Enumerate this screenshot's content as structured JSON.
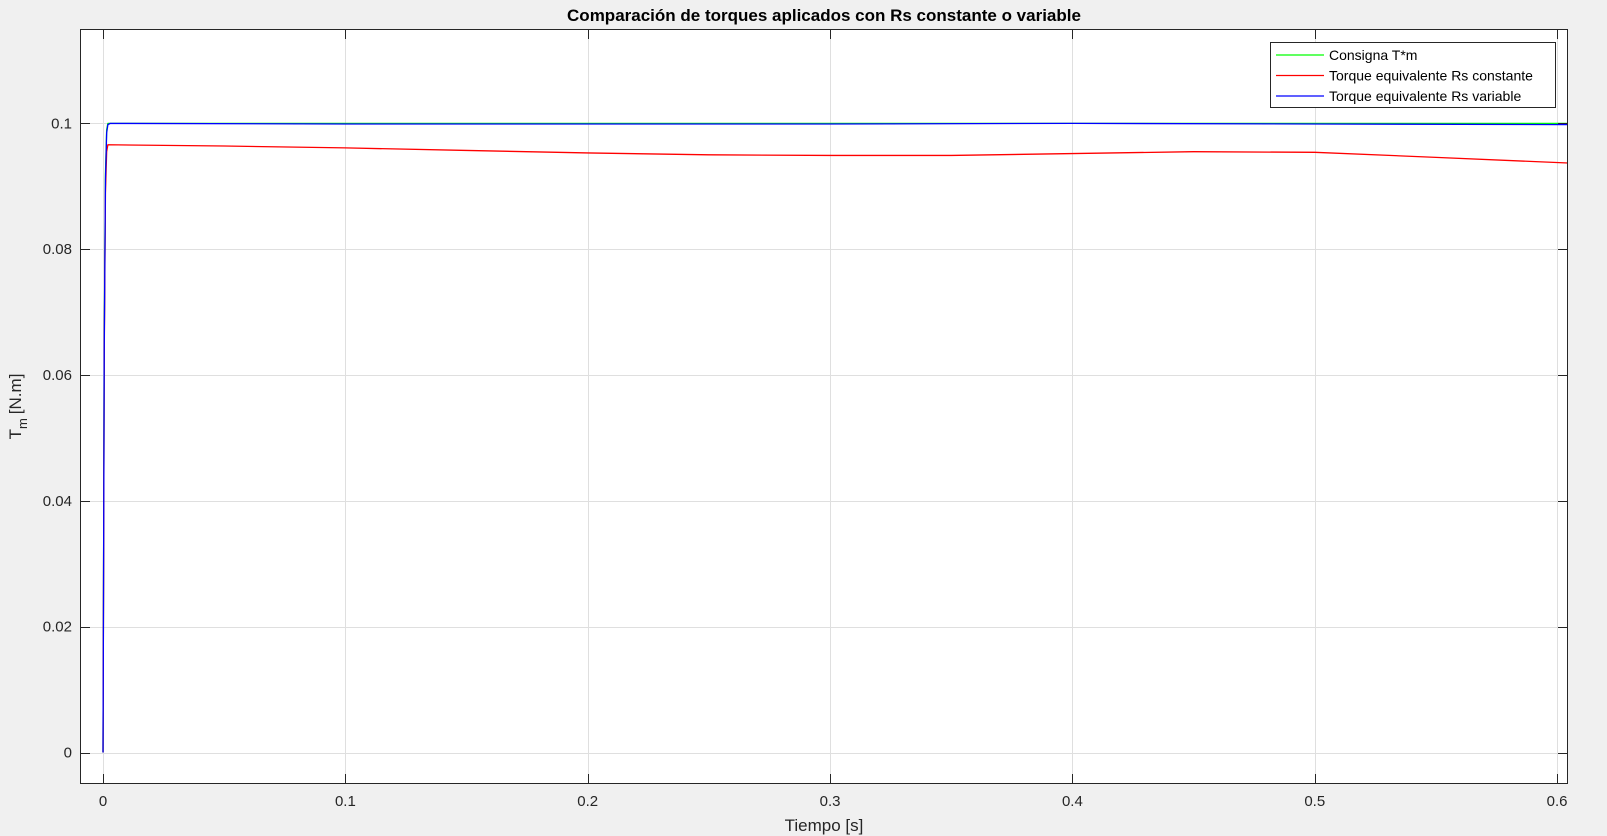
{
  "chart_data": {
    "type": "line",
    "title": "Comparación de torques aplicados con Rs constante o variable",
    "xlabel": "Tiempo [s]",
    "ylabel_main": "T",
    "ylabel_sub": "m",
    "ylabel_unit": "[N.m]",
    "xlim": [
      -0.0095,
      0.6045
    ],
    "ylim": [
      -0.005,
      0.115
    ],
    "xticks": [
      0,
      0.1,
      0.2,
      0.3,
      0.4,
      0.5,
      0.6
    ],
    "xtick_labels": [
      "0",
      "0.1",
      "0.2",
      "0.3",
      "0.4",
      "0.5",
      "0.6"
    ],
    "yticks": [
      0,
      0.02,
      0.04,
      0.06,
      0.08,
      0.1
    ],
    "ytick_labels": [
      "0",
      "0.02",
      "0.04",
      "0.06",
      "0.08",
      "0.1"
    ],
    "grid": true,
    "legend_location": "top-right",
    "series": [
      {
        "name": "Consigna T*m",
        "color": "#00ff00",
        "x": [
          0,
          0.0005,
          0.001,
          0.0015,
          0.002,
          0.6045
        ],
        "y": [
          0,
          0.065,
          0.092,
          0.099,
          0.1,
          0.1
        ]
      },
      {
        "name": "Torque equivalente Rs constante",
        "color": "#ff0000",
        "x": [
          0,
          0.0005,
          0.001,
          0.0015,
          0.002,
          0.05,
          0.1,
          0.15,
          0.2,
          0.25,
          0.3,
          0.35,
          0.4,
          0.45,
          0.5,
          0.55,
          0.6045
        ],
        "y": [
          0,
          0.063,
          0.089,
          0.0955,
          0.0966,
          0.0964,
          0.0961,
          0.0957,
          0.0953,
          0.095,
          0.0949,
          0.0949,
          0.0952,
          0.0955,
          0.0954,
          0.0946,
          0.0937
        ]
      },
      {
        "name": "Torque equivalente Rs variable",
        "color": "#0000ff",
        "x": [
          0,
          0.0005,
          0.001,
          0.0015,
          0.002,
          0.003,
          0.1,
          0.2,
          0.3,
          0.4,
          0.5,
          0.6045
        ],
        "y": [
          0,
          0.064,
          0.091,
          0.0985,
          0.0998,
          0.1,
          0.0999,
          0.0999,
          0.0999,
          0.1,
          0.0999,
          0.0998
        ]
      }
    ]
  },
  "colors": {
    "figure_background": "#f0f0f0",
    "axes_background": "#ffffff",
    "grid": "#dfdfdf",
    "axes_edge": "#262626"
  }
}
